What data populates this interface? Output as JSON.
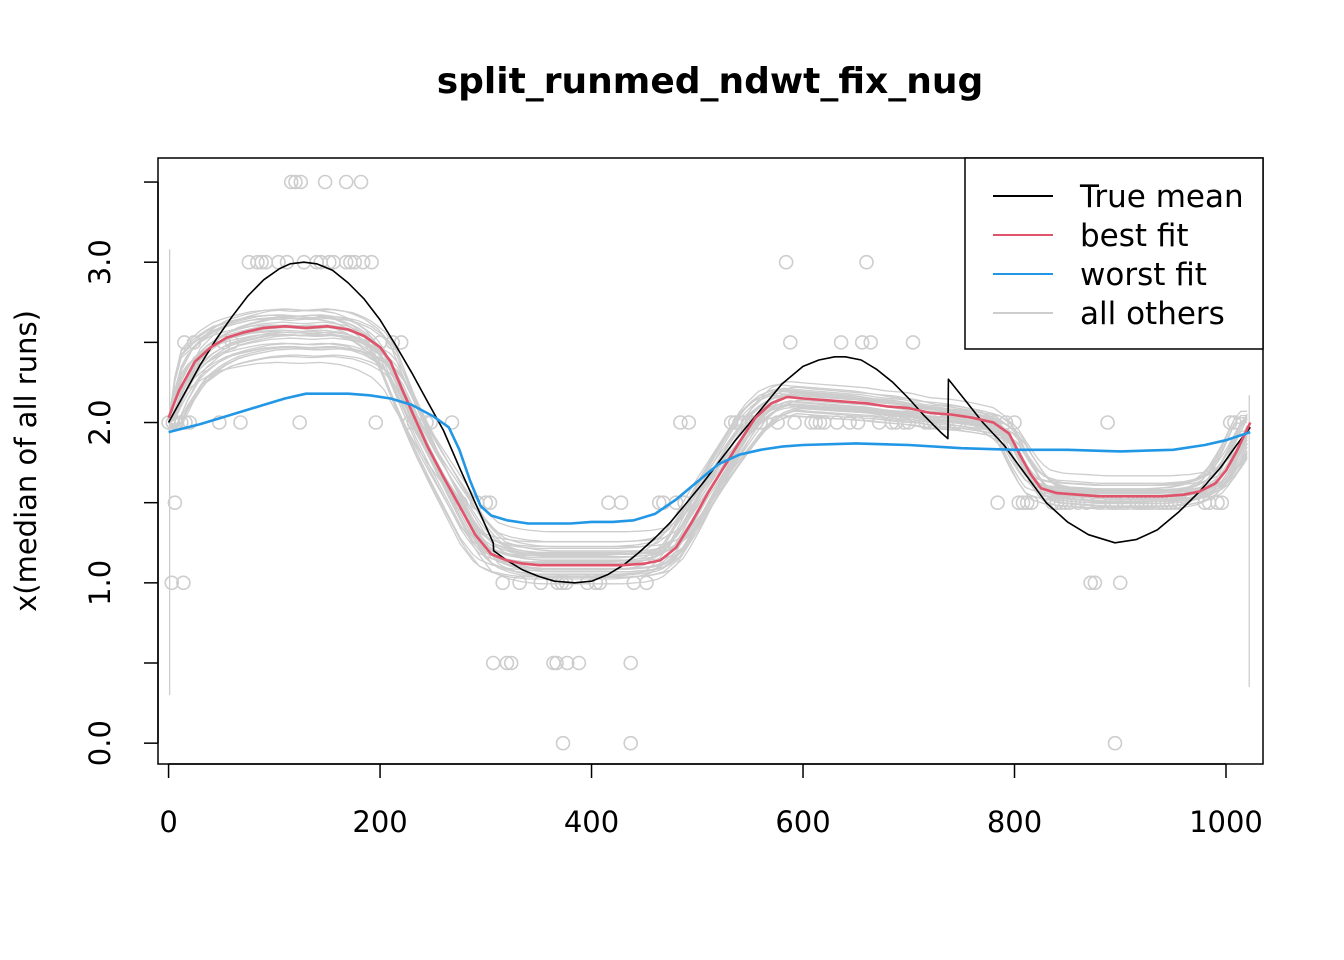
{
  "chart_data": {
    "type": "line",
    "title": "split_runmed_ndwt_fix_nug",
    "xlabel": "",
    "ylabel": "x(median of all runs)",
    "xlim": [
      -10,
      1035
    ],
    "ylim": [
      -0.13,
      3.65
    ],
    "x_ticks": [
      0,
      200,
      400,
      600,
      800,
      1000
    ],
    "y_ticks": [
      0.0,
      0.5,
      1.0,
      1.5,
      2.0,
      2.5,
      3.0,
      3.5
    ],
    "y_tick_labels": [
      "0.0",
      "1.0",
      "2.0",
      "3.0"
    ],
    "legend_position": "top-right",
    "series": [
      {
        "name": "True mean",
        "color": "#000000",
        "x": [
          0,
          15,
          30,
          45,
          60,
          75,
          90,
          105,
          115,
          128,
          140,
          155,
          170,
          185,
          200,
          215,
          230,
          245,
          260,
          275,
          290,
          307,
          307.5,
          320,
          335,
          350,
          365,
          384,
          400,
          415,
          430,
          445,
          460,
          475,
          490,
          505,
          520,
          535,
          550,
          565,
          580,
          600,
          615,
          630,
          640,
          655,
          670,
          685,
          700,
          715,
          730,
          737,
          737.5,
          752,
          770,
          790,
          810,
          830,
          850,
          870,
          895,
          915,
          935,
          955,
          975,
          995,
          1010,
          1023
        ],
        "values": [
          2.0,
          2.18,
          2.36,
          2.52,
          2.66,
          2.79,
          2.89,
          2.96,
          2.99,
          3.0,
          2.99,
          2.95,
          2.87,
          2.77,
          2.64,
          2.48,
          2.31,
          2.13,
          1.95,
          1.72,
          1.5,
          1.25,
          1.2,
          1.14,
          1.08,
          1.04,
          1.01,
          1.0,
          1.01,
          1.05,
          1.11,
          1.19,
          1.28,
          1.38,
          1.5,
          1.62,
          1.75,
          1.88,
          2.0,
          2.12,
          2.24,
          2.35,
          2.39,
          2.41,
          2.41,
          2.39,
          2.33,
          2.25,
          2.15,
          2.04,
          1.94,
          1.9,
          2.27,
          2.15,
          2.0,
          1.86,
          1.68,
          1.5,
          1.38,
          1.3,
          1.25,
          1.27,
          1.33,
          1.44,
          1.57,
          1.72,
          1.86,
          1.97
        ]
      },
      {
        "name": "best fit",
        "color": "#DF536B",
        "x": [
          0,
          10,
          25,
          40,
          55,
          70,
          90,
          110,
          130,
          150,
          170,
          185,
          200,
          210,
          220,
          232,
          245,
          260,
          275,
          290,
          305,
          320,
          335,
          350,
          370,
          390,
          410,
          430,
          450,
          465,
          480,
          495,
          510,
          525,
          540,
          555,
          570,
          585,
          600,
          620,
          640,
          660,
          680,
          700,
          720,
          740,
          760,
          780,
          795,
          805,
          815,
          825,
          840,
          860,
          880,
          900,
          920,
          940,
          960,
          975,
          990,
          1000,
          1010,
          1023
        ],
        "values": [
          2.03,
          2.2,
          2.38,
          2.47,
          2.53,
          2.56,
          2.59,
          2.6,
          2.59,
          2.6,
          2.58,
          2.54,
          2.47,
          2.38,
          2.22,
          2.04,
          1.85,
          1.66,
          1.48,
          1.3,
          1.18,
          1.14,
          1.12,
          1.11,
          1.11,
          1.11,
          1.11,
          1.11,
          1.12,
          1.14,
          1.22,
          1.38,
          1.56,
          1.72,
          1.88,
          2.03,
          2.12,
          2.16,
          2.15,
          2.14,
          2.13,
          2.12,
          2.1,
          2.09,
          2.06,
          2.05,
          2.03,
          2.0,
          1.93,
          1.8,
          1.68,
          1.59,
          1.56,
          1.55,
          1.54,
          1.54,
          1.54,
          1.54,
          1.55,
          1.57,
          1.62,
          1.7,
          1.82,
          2.0
        ]
      },
      {
        "name": "worst fit",
        "color": "#2297E6",
        "x": [
          0,
          30,
          60,
          90,
          110,
          130,
          150,
          170,
          190,
          210,
          230,
          250,
          265,
          275,
          285,
          295,
          305,
          320,
          340,
          360,
          380,
          400,
          420,
          440,
          460,
          480,
          500,
          520,
          540,
          560,
          580,
          600,
          650,
          700,
          750,
          800,
          850,
          900,
          950,
          980,
          1000,
          1023
        ],
        "values": [
          1.94,
          1.99,
          2.05,
          2.11,
          2.15,
          2.18,
          2.18,
          2.18,
          2.17,
          2.15,
          2.11,
          2.04,
          1.97,
          1.83,
          1.64,
          1.48,
          1.42,
          1.39,
          1.37,
          1.37,
          1.37,
          1.38,
          1.38,
          1.39,
          1.43,
          1.52,
          1.63,
          1.74,
          1.8,
          1.83,
          1.85,
          1.86,
          1.87,
          1.86,
          1.84,
          1.83,
          1.83,
          1.82,
          1.83,
          1.86,
          1.89,
          1.94
        ]
      }
    ],
    "others": {
      "name": "all others",
      "color": "#CDCDCD",
      "count": 34
    },
    "point_values": [
      0.0,
      0.5,
      1.0,
      1.5,
      2.0,
      2.5,
      3.0,
      3.5
    ]
  }
}
